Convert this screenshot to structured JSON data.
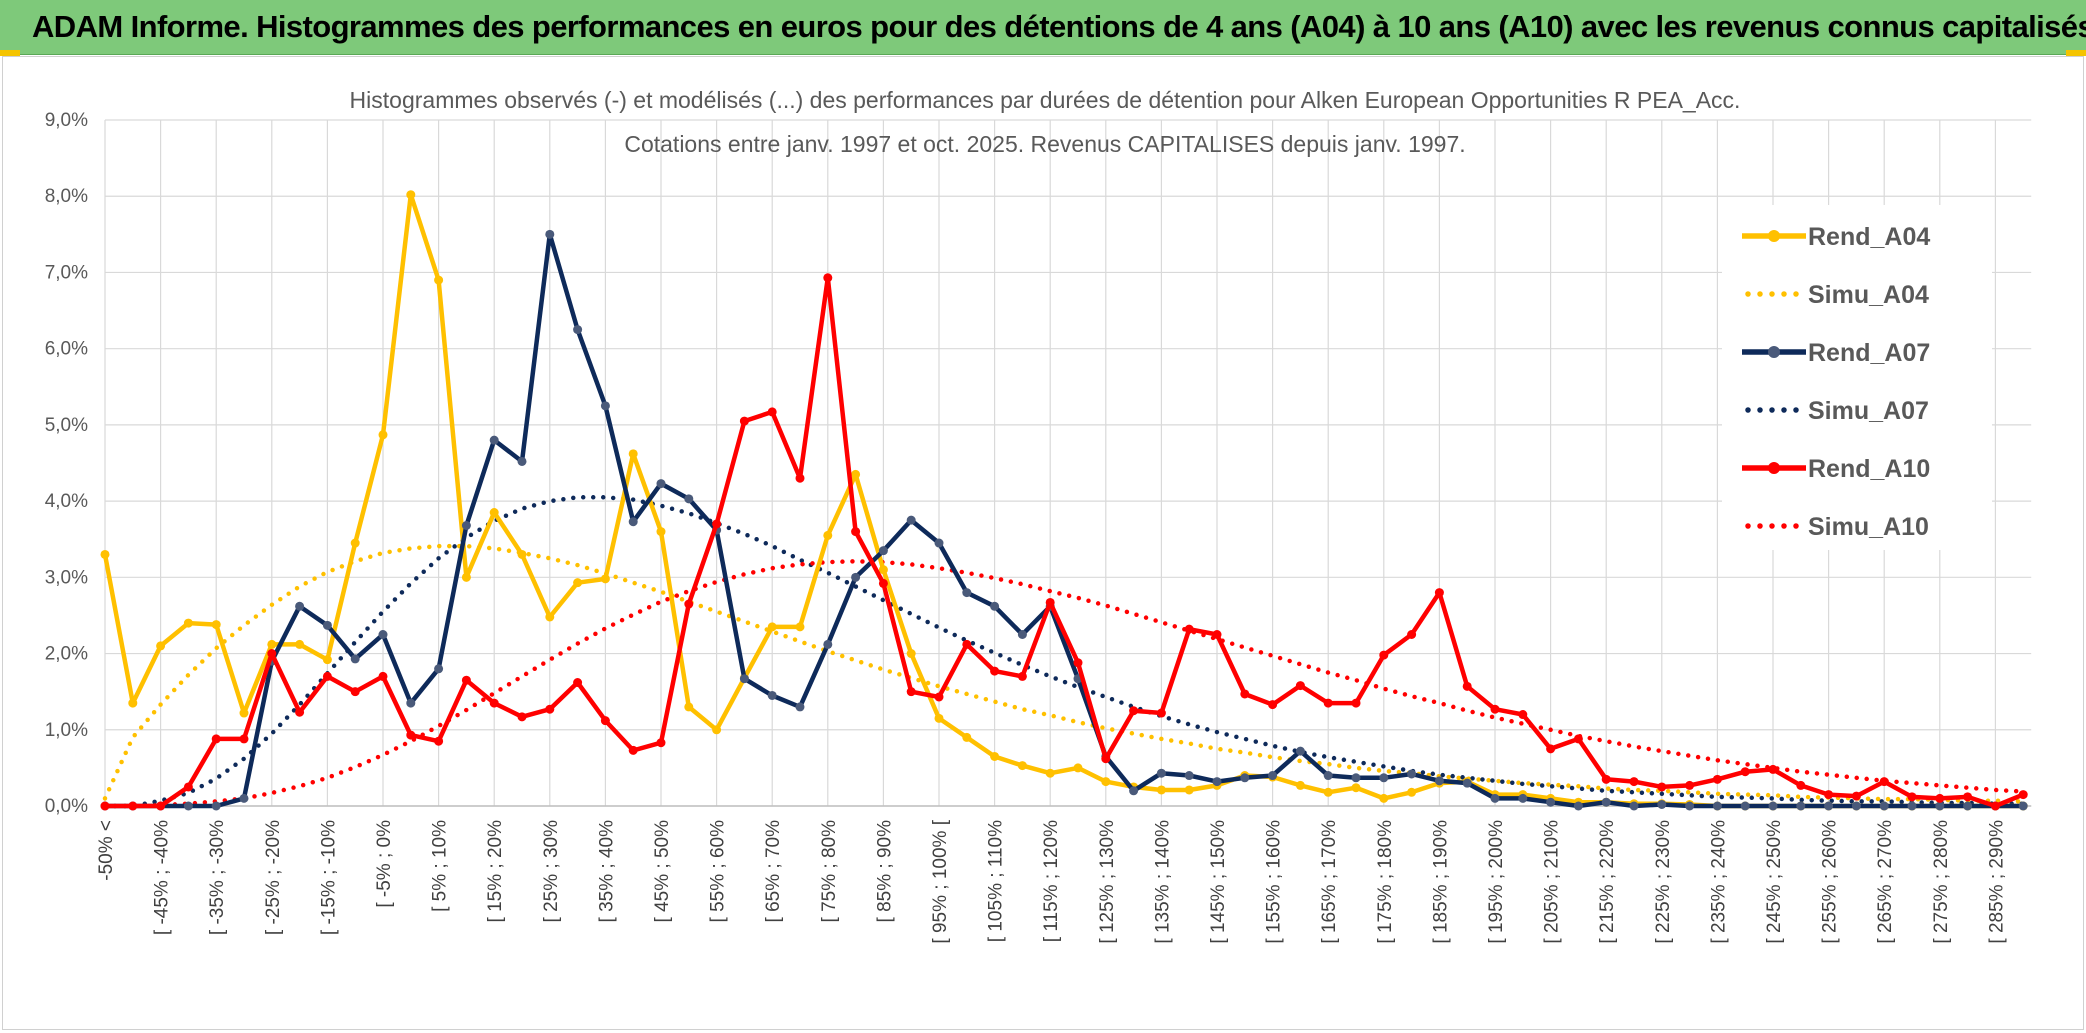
{
  "banner": {
    "title": "ADAM Informe. Histogrammes des performances en euros pour des détentions de 4 ans (A04) à 10 ans (A10) avec les revenus connus capitalisés"
  },
  "chart_data": {
    "type": "line",
    "title": "Histogrammes observés (-) et modélisés (...) des performances par durées de détention pour Alken European Opportunities R PEA_Acc.",
    "subtitle": "Cotations entre janv. 1997 et oct. 2025. Revenus CAPITALISES depuis janv. 1997.",
    "xlabel": "",
    "ylabel": "",
    "ylim": [
      0,
      9
    ],
    "grid": true,
    "legend_position": "right",
    "y_ticks": [
      "0,0%",
      "1,0%",
      "2,0%",
      "3,0%",
      "4,0%",
      "5,0%",
      "6,0%",
      "7,0%",
      "8,0%",
      "9,0%"
    ],
    "x_tick_labels": [
      "-50% <",
      "[ -45% ; -40%",
      "[ -35% ; -30%",
      "[ -25% ; -20%",
      "[ -15% ; -10%",
      "[ -5% ; 0%",
      "[ 5% ; 10%",
      "[ 15% ; 20%",
      "[ 25% ; 30%",
      "[ 35% ; 40%",
      "[ 45% ; 50%",
      "[ 55% ; 60%",
      "[ 65% ; 70%",
      "[ 75% ; 80%",
      "[ 85% ; 90%",
      "[ 95% ; 100% [",
      "[ 105% ; 110%",
      "[ 115% ; 120%",
      "[ 125% ; 130%",
      "[ 135% ; 140%",
      "[ 145% ; 150%",
      "[ 155% ; 160%",
      "[ 165% ; 170%",
      "[ 175% ; 180%",
      "[ 185% ; 190%",
      "[ 195% ; 200%",
      "[ 205% ; 210%",
      "[ 215% ; 220%",
      "[ 225% ; 230%",
      "[ 235% ; 240%",
      "[ 245% ; 250%",
      "[ 255% ; 260%",
      "[ 265% ; 270%",
      "[ 275% ; 280%",
      "[ 285% ; 290%"
    ],
    "tick_positions": [
      0,
      2,
      4,
      6,
      8,
      10,
      12,
      14,
      16,
      18,
      20,
      22,
      24,
      26,
      28,
      30,
      32,
      34,
      36,
      38,
      40,
      42,
      44,
      46,
      48,
      50,
      52,
      54,
      56,
      58,
      60,
      62,
      64,
      66,
      68
    ],
    "n_categories": 70,
    "series": [
      {
        "name": "Rend_A04",
        "style": "solid",
        "color": "#FFC000",
        "values": [
          3.3,
          1.35,
          2.1,
          2.4,
          2.38,
          1.22,
          2.12,
          2.12,
          1.92,
          3.45,
          4.87,
          8.02,
          6.9,
          3.0,
          3.85,
          3.3,
          2.48,
          2.93,
          2.98,
          4.62,
          3.6,
          1.3,
          1.0,
          1.68,
          2.35,
          2.35,
          3.55,
          4.35,
          3.1,
          2.0,
          1.15,
          0.9,
          0.65,
          0.53,
          0.43,
          0.5,
          0.32,
          0.25,
          0.21,
          0.21,
          0.27,
          0.4,
          0.38,
          0.27,
          0.18,
          0.24,
          0.1,
          0.18,
          0.3,
          0.32,
          0.15,
          0.15,
          0.1,
          0.05,
          0.05,
          0.03,
          0.03,
          0.02,
          0.0,
          0.0,
          0.0,
          0.0,
          0.0,
          0.0,
          0.0,
          0.0,
          0.0,
          0.0,
          0.0,
          0.0
        ]
      },
      {
        "name": "Simu_A04",
        "style": "dotted",
        "color": "#FFC000",
        "values": [
          0.1,
          0.9,
          1.33,
          1.72,
          2.07,
          2.37,
          2.64,
          2.88,
          3.07,
          3.21,
          3.32,
          3.38,
          3.41,
          3.41,
          3.38,
          3.32,
          3.25,
          3.16,
          3.05,
          2.93,
          2.81,
          2.68,
          2.55,
          2.42,
          2.29,
          2.16,
          2.03,
          1.91,
          1.79,
          1.68,
          1.57,
          1.47,
          1.37,
          1.27,
          1.19,
          1.1,
          1.02,
          0.95,
          0.88,
          0.82,
          0.75,
          0.7,
          0.64,
          0.59,
          0.55,
          0.5,
          0.46,
          0.43,
          0.39,
          0.36,
          0.33,
          0.3,
          0.28,
          0.26,
          0.23,
          0.21,
          0.2,
          0.18,
          0.16,
          0.15,
          0.14,
          0.12,
          0.11,
          0.1,
          0.09,
          0.09,
          0.08,
          0.07,
          0.07,
          0.06
        ]
      },
      {
        "name": "Rend_A07",
        "style": "solid",
        "color": "#0E2A5A",
        "values": [
          0.0,
          0.0,
          0.0,
          0.0,
          0.0,
          0.1,
          1.9,
          2.62,
          2.37,
          1.93,
          2.25,
          1.35,
          1.8,
          3.68,
          4.8,
          4.52,
          7.5,
          6.25,
          5.25,
          3.73,
          4.23,
          4.03,
          3.62,
          1.67,
          1.45,
          1.3,
          2.12,
          3.0,
          3.35,
          3.75,
          3.45,
          2.8,
          2.62,
          2.25,
          2.62,
          1.67,
          0.65,
          0.2,
          0.43,
          0.4,
          0.32,
          0.37,
          0.4,
          0.72,
          0.4,
          0.37,
          0.37,
          0.42,
          0.33,
          0.3,
          0.1,
          0.1,
          0.05,
          0.0,
          0.05,
          0.0,
          0.02,
          0.0,
          0.0,
          0.0,
          0.0,
          0.0,
          0.0,
          0.0,
          0.0,
          0.0,
          0.0,
          0.0,
          0.0,
          0.0
        ]
      },
      {
        "name": "Simu_A07",
        "style": "dotted",
        "color": "#0E2A5A",
        "values": [
          0.0,
          0.0,
          0.07,
          0.17,
          0.36,
          0.62,
          0.95,
          1.33,
          1.74,
          2.15,
          2.55,
          2.92,
          3.25,
          3.52,
          3.74,
          3.9,
          4.0,
          4.05,
          4.05,
          4.02,
          3.94,
          3.84,
          3.71,
          3.57,
          3.41,
          3.23,
          3.06,
          2.88,
          2.7,
          2.52,
          2.34,
          2.17,
          2.01,
          1.85,
          1.7,
          1.56,
          1.43,
          1.3,
          1.18,
          1.07,
          0.97,
          0.88,
          0.79,
          0.71,
          0.64,
          0.58,
          0.52,
          0.46,
          0.41,
          0.37,
          0.33,
          0.29,
          0.26,
          0.23,
          0.2,
          0.18,
          0.16,
          0.14,
          0.12,
          0.11,
          0.1,
          0.08,
          0.07,
          0.06,
          0.06,
          0.05,
          0.04,
          0.04,
          0.03,
          0.03
        ]
      },
      {
        "name": "Rend_A10",
        "style": "solid",
        "color": "#FF0000",
        "values": [
          0.0,
          0.0,
          0.0,
          0.25,
          0.88,
          0.88,
          2.0,
          1.23,
          1.7,
          1.5,
          1.7,
          0.93,
          0.85,
          1.65,
          1.35,
          1.17,
          1.27,
          1.62,
          1.12,
          0.73,
          0.83,
          2.65,
          3.7,
          5.05,
          5.17,
          4.3,
          6.93,
          3.6,
          2.92,
          1.5,
          1.43,
          2.12,
          1.77,
          1.7,
          2.67,
          1.88,
          0.62,
          1.25,
          1.22,
          2.32,
          2.25,
          1.47,
          1.33,
          1.58,
          1.35,
          1.35,
          1.98,
          2.25,
          2.8,
          1.57,
          1.27,
          1.2,
          0.75,
          0.88,
          0.35,
          0.32,
          0.25,
          0.27,
          0.35,
          0.45,
          0.48,
          0.27,
          0.15,
          0.13,
          0.32,
          0.12,
          0.1,
          0.12,
          0.0,
          0.15
        ]
      },
      {
        "name": "Simu_A10",
        "style": "dotted",
        "color": "#FF0000",
        "values": [
          0.0,
          0.0,
          0.01,
          0.03,
          0.06,
          0.1,
          0.17,
          0.26,
          0.37,
          0.51,
          0.67,
          0.85,
          1.05,
          1.26,
          1.48,
          1.7,
          1.92,
          2.13,
          2.33,
          2.51,
          2.68,
          2.82,
          2.94,
          3.04,
          3.12,
          3.17,
          3.2,
          3.21,
          3.2,
          3.17,
          3.12,
          3.06,
          2.99,
          2.91,
          2.82,
          2.73,
          2.63,
          2.52,
          2.41,
          2.3,
          2.19,
          2.08,
          1.97,
          1.86,
          1.75,
          1.65,
          1.54,
          1.44,
          1.35,
          1.25,
          1.16,
          1.08,
          1.0,
          0.92,
          0.85,
          0.78,
          0.72,
          0.66,
          0.6,
          0.55,
          0.5,
          0.45,
          0.41,
          0.37,
          0.33,
          0.3,
          0.27,
          0.24,
          0.21,
          0.19
        ]
      }
    ]
  }
}
